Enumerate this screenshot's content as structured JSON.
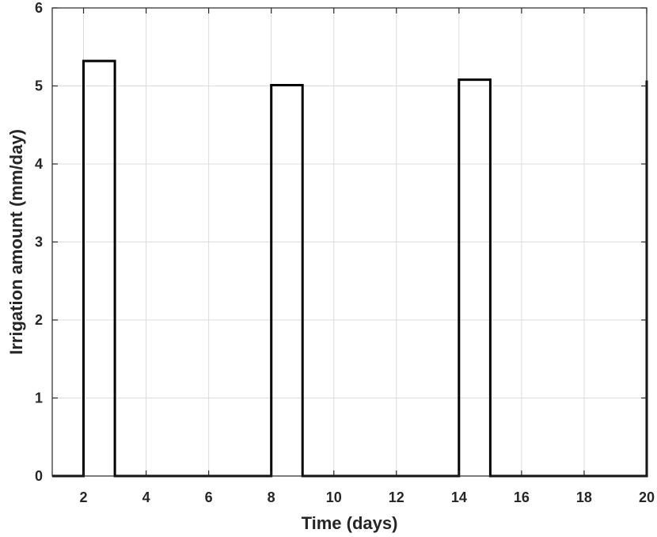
{
  "chart_data": {
    "type": "line",
    "title": "",
    "xlabel": "Time (days)",
    "ylabel": "Irrigation amount (mm/day)",
    "xlim": [
      1,
      20
    ],
    "ylim": [
      0,
      6
    ],
    "grid": true,
    "x_ticks": [
      2,
      4,
      6,
      8,
      10,
      12,
      14,
      16,
      18,
      20
    ],
    "x_tick_labels": [
      "2",
      "4",
      "6",
      "8",
      "10",
      "12",
      "14",
      "16",
      "18",
      "20"
    ],
    "y_ticks": [
      0,
      1,
      2,
      3,
      4,
      5,
      6
    ],
    "y_tick_labels": [
      "0",
      "1",
      "2",
      "3",
      "4",
      "5",
      "6"
    ],
    "line_color": "#000000",
    "series": [
      {
        "x": [
          1,
          2,
          2,
          3,
          3,
          8,
          8,
          9,
          9,
          14,
          14,
          15,
          15,
          20,
          20
        ],
        "y": [
          0,
          0,
          5.32,
          5.32,
          0,
          0,
          5.01,
          5.01,
          0,
          0,
          5.08,
          5.08,
          0,
          0,
          5.07
        ]
      }
    ]
  }
}
